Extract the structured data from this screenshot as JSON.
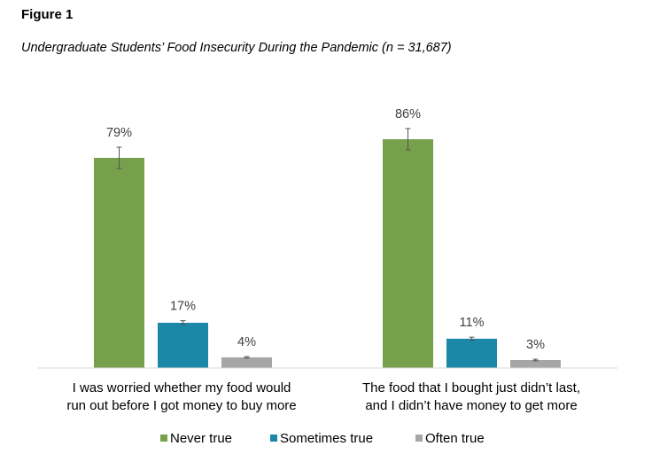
{
  "figure_label": "Figure 1",
  "figure_title": "Undergraduate Students’ Food Insecurity During the Pandemic (n = 31,687)",
  "chart_data": {
    "type": "bar",
    "title": "",
    "categories": [
      [
        "I was worried whether my food would",
        "run out before I got money to buy more"
      ],
      [
        "The food that I bought just didn’t last,",
        "and I didn’t have money to get more"
      ]
    ],
    "series": [
      {
        "name": "Never true",
        "color": "#77a04c",
        "values": [
          79,
          86
        ],
        "labels": [
          "79%",
          "86%"
        ],
        "error": [
          4,
          4
        ]
      },
      {
        "name": "Sometimes true",
        "color": "#1c88a8",
        "values": [
          17,
          11
        ],
        "labels": [
          "17%",
          "11%"
        ],
        "error": [
          0.8,
          0.6
        ]
      },
      {
        "name": "Often true",
        "color": "#a6a6a6",
        "values": [
          4,
          3
        ],
        "labels": [
          "4%",
          "3%"
        ],
        "error": [
          0.3,
          0.3
        ]
      }
    ],
    "ylim": [
      0,
      100
    ],
    "grid": false,
    "legend_position": "bottom"
  }
}
